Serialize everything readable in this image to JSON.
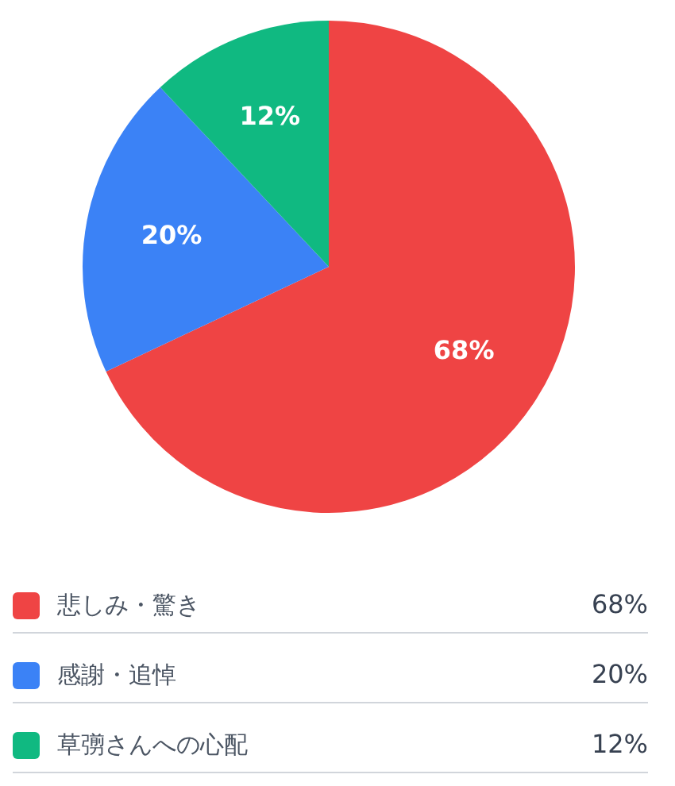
{
  "chart_data": {
    "type": "pie",
    "categories": [
      "悲しみ・驚き",
      "感謝・追悼",
      "草彅さんへの心配"
    ],
    "values": [
      68,
      20,
      12
    ],
    "colors": [
      "#ef4444",
      "#3b82f6",
      "#10b981"
    ],
    "value_labels": [
      "68%",
      "20%",
      "12%"
    ],
    "legend": "bottom"
  }
}
